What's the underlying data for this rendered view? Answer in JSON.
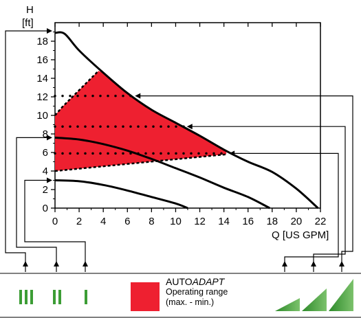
{
  "chart_data": {
    "type": "line",
    "y_axis": {
      "title_line1": "H",
      "title_line2": "[ft]",
      "ticks": [
        0,
        2,
        4,
        6,
        8,
        10,
        12,
        14,
        16,
        18
      ],
      "range": [
        0,
        20
      ]
    },
    "x_axis": {
      "title": "Q [US GPM]",
      "ticks": [
        0,
        2,
        4,
        6,
        8,
        10,
        12,
        14,
        16,
        18,
        20,
        22
      ],
      "range": [
        0,
        22
      ]
    },
    "grid": false,
    "pump_curves": [
      {
        "setting": "III",
        "points": [
          [
            0,
            18.9
          ],
          [
            0.8,
            18.8
          ],
          [
            2,
            17.0
          ],
          [
            4,
            14.6
          ],
          [
            6,
            12.4
          ],
          [
            8,
            10.6
          ],
          [
            10,
            9.2
          ],
          [
            12,
            7.8
          ],
          [
            14,
            6.3
          ],
          [
            16,
            5.0
          ],
          [
            18,
            3.9
          ],
          [
            20,
            2.1
          ],
          [
            21.8,
            0
          ]
        ]
      },
      {
        "setting": "II",
        "points": [
          [
            0,
            7.6
          ],
          [
            2,
            7.4
          ],
          [
            4,
            6.9
          ],
          [
            6,
            6.2
          ],
          [
            8,
            5.3
          ],
          [
            10,
            4.3
          ],
          [
            12,
            3.3
          ],
          [
            14,
            2.2
          ],
          [
            16,
            1.2
          ],
          [
            17.8,
            0
          ]
        ]
      },
      {
        "setting": "I",
        "points": [
          [
            0,
            3.0
          ],
          [
            2,
            2.9
          ],
          [
            4,
            2.5
          ],
          [
            6,
            1.9
          ],
          [
            8,
            1.2
          ],
          [
            10,
            0.5
          ],
          [
            11,
            0
          ]
        ]
      }
    ],
    "autoadapt_range": {
      "upper_boundary": [
        [
          0,
          10.0
        ],
        [
          0.6,
          10.9
        ],
        [
          3.6,
          14.8
        ]
      ],
      "lower_boundary": [
        [
          0,
          4.0
        ],
        [
          14.2,
          5.8
        ]
      ],
      "fill_color": "#ee2030"
    },
    "constant_pressure_lines": [
      {
        "h": 12.1,
        "x_end": 6.4
      },
      {
        "h": 8.8,
        "x_end": 10.7
      },
      {
        "h": 5.9,
        "x_end": 14.2
      }
    ],
    "legend": {
      "title_plain": "AUTO",
      "title_italic": "ADAPT",
      "line2": "Operating range",
      "line3": "(max. - min.)",
      "swatch_color": "#ee2030"
    },
    "settings_icons": {
      "proportional": [
        "III",
        "II",
        "I"
      ],
      "constant_pressure": [
        "low",
        "mid",
        "high"
      ],
      "icon_color": "#3c9d35"
    }
  }
}
